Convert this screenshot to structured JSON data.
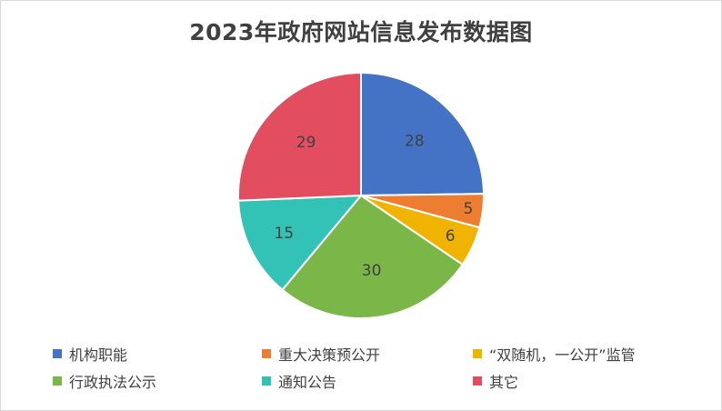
{
  "chart_data": {
    "type": "pie",
    "title": "2023年政府网站信息发布数据图",
    "categories": [
      "机构职能",
      "重大决策预公开",
      "“双随机，一公开”监管",
      "行政执法公示",
      "通知公告",
      "其它"
    ],
    "values": [
      28,
      5,
      6,
      30,
      15,
      29
    ],
    "colors": [
      "#4472C4",
      "#ED7D31",
      "#F0B400",
      "#7AB648",
      "#33C3B6",
      "#E24E60"
    ],
    "data_labels": [
      "28",
      "5",
      "6",
      "30",
      "15",
      "29"
    ],
    "legend_position": "bottom",
    "start_angle": "12 o'clock",
    "direction": "clockwise"
  }
}
